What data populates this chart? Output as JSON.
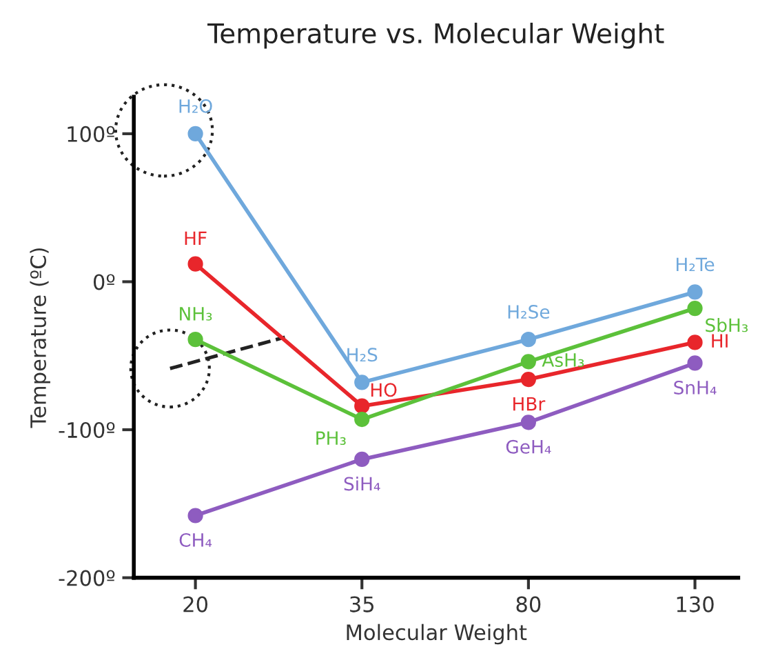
{
  "chart_data": {
    "type": "line",
    "title": "Temperature vs. Molecular Weight",
    "xlabel": "Molecular Weight",
    "ylabel": "Temperature (ºC)",
    "categories": [
      "20",
      "35",
      "80",
      "130"
    ],
    "ylim": [
      -200,
      125
    ],
    "yticks": [
      {
        "value": -200,
        "label": "-200º"
      },
      {
        "value": -100,
        "label": "-100º"
      },
      {
        "value": 0,
        "label": "0º"
      },
      {
        "value": 100,
        "label": "100º"
      }
    ],
    "marker": "circle",
    "grid": false,
    "series": [
      {
        "color": "#6fa8dc",
        "values": [
          100,
          -68,
          -39,
          -7
        ],
        "value_labels": [
          "H₂O",
          "H₂S",
          "H₂Se",
          "H₂Te"
        ]
      },
      {
        "color": "#e8262b",
        "values": [
          12,
          -84,
          -66,
          -41
        ],
        "value_labels": [
          "HF",
          "HO",
          "HBr",
          "HI"
        ]
      },
      {
        "color": "#5cc13a",
        "values": [
          -39,
          -93,
          -54,
          -18
        ],
        "value_labels": [
          "NH₃",
          "PH₃",
          "AsH₃",
          "SbH₃"
        ]
      },
      {
        "color": "#8e5cc0",
        "values": [
          -158,
          -120,
          -95,
          -55
        ],
        "value_labels": [
          "CH₄",
          "SiH₄",
          "GeH₄",
          "SnH₄"
        ]
      }
    ]
  }
}
